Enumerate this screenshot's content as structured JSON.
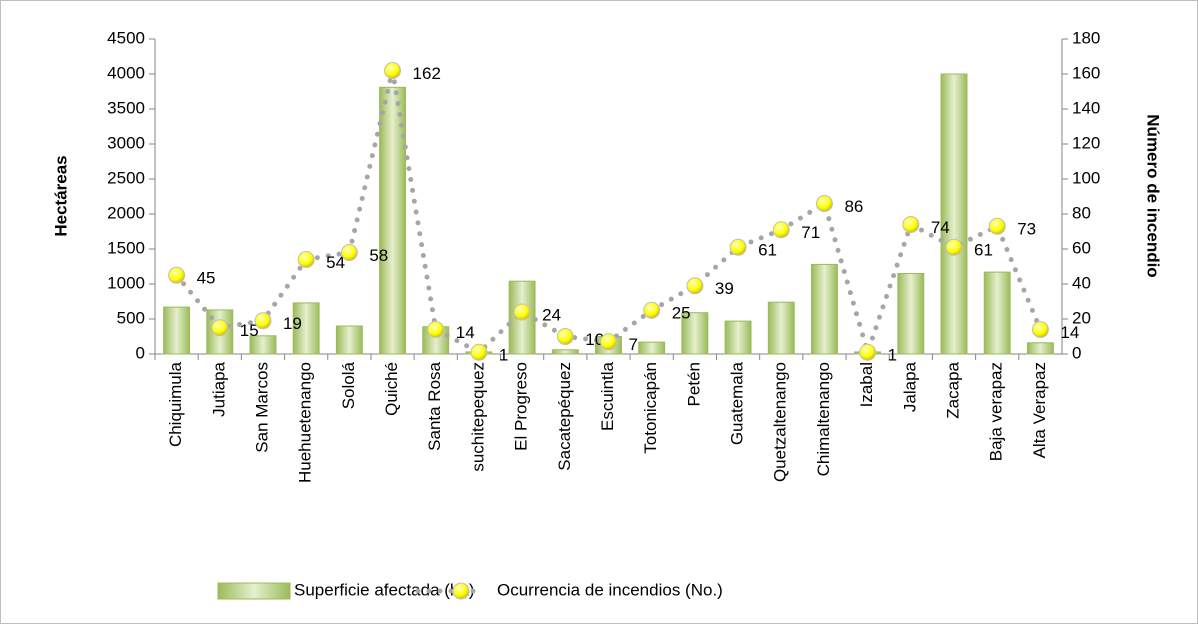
{
  "chart_data": {
    "type": "bar",
    "categories": [
      "Chiquimula",
      "Jutiapa",
      "San Marcos",
      "Huehuetenango",
      "Sololá",
      "Quiché",
      "Santa Rosa",
      "suchitepequez",
      "El Progreso",
      "Sacatepéquez",
      "Escuintla",
      "Totonicapán",
      "Petén",
      "Guatemala",
      "Quetzaltenango",
      "Chimaltenango",
      "Izabal",
      "Jalapa",
      "Zacapa",
      "Baja verapaz",
      "Alta Verapaz"
    ],
    "series": [
      {
        "name": "Superficie afectada (ha)",
        "type": "bar",
        "color": "#9bbb59",
        "values": [
          670,
          630,
          260,
          730,
          400,
          3810,
          390,
          30,
          1040,
          60,
          250,
          170,
          590,
          470,
          740,
          1280,
          30,
          1150,
          4000,
          1170,
          160
        ]
      },
      {
        "name": "Ocurrencia de incendios (No.)",
        "type": "line",
        "axis": "y2",
        "color": "#a6a6a6",
        "values": [
          45,
          15,
          19,
          54,
          58,
          162,
          14,
          1,
          24,
          10,
          7,
          25,
          39,
          61,
          71,
          86,
          1,
          74,
          61,
          73,
          14
        ]
      }
    ],
    "ylabel": "Hectáreas",
    "y2label": "Número de incendio",
    "ylim": [
      0,
      4500
    ],
    "yticks": [
      0,
      500,
      1000,
      1500,
      2000,
      2500,
      3000,
      3500,
      4000,
      4500
    ],
    "y2lim": [
      0,
      180
    ],
    "y2ticks": [
      0,
      20,
      40,
      60,
      80,
      100,
      120,
      140,
      160,
      180
    ],
    "legend": "bottom"
  }
}
